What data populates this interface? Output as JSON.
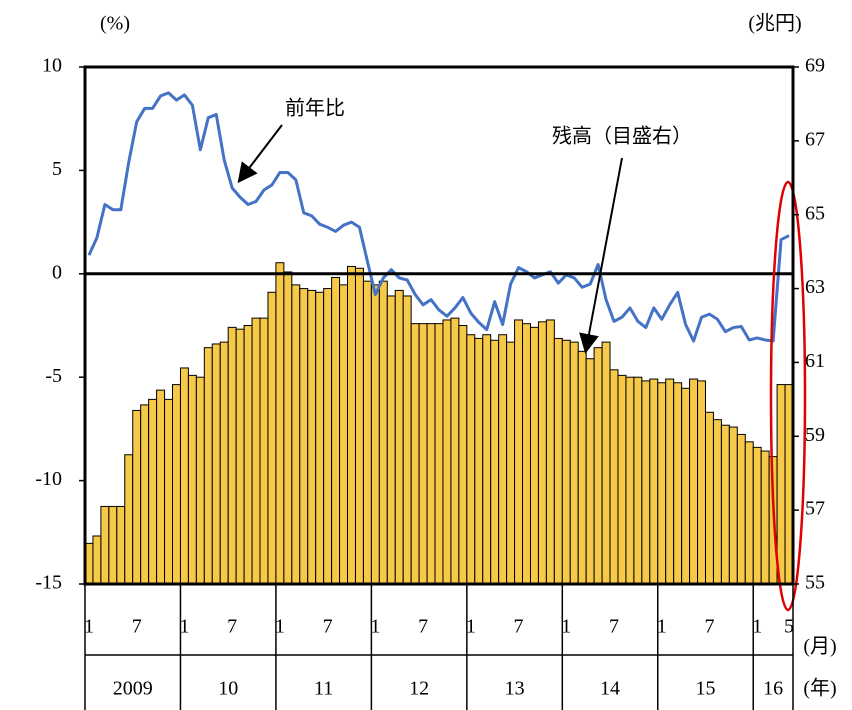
{
  "chart_data": {
    "type": "bar-line",
    "ylabel": "(%)",
    "y2label": "(兆円)",
    "xlabel": "(月)",
    "x2label": "(年)",
    "ylim": [
      -15,
      10
    ],
    "yticks": [
      -15,
      -10,
      -5,
      0,
      5,
      10
    ],
    "y2lim": [
      55,
      69
    ],
    "y2ticks": [
      55,
      57,
      59,
      61,
      63,
      65,
      67,
      69
    ],
    "categories": [
      "1",
      null,
      null,
      null,
      null,
      null,
      "7",
      null,
      null,
      null,
      null,
      null,
      "1",
      null,
      null,
      null,
      null,
      null,
      "7",
      null,
      null,
      null,
      null,
      null,
      "1",
      null,
      null,
      null,
      null,
      null,
      "7",
      null,
      null,
      null,
      null,
      null,
      "1",
      null,
      null,
      null,
      null,
      null,
      "7",
      null,
      null,
      null,
      null,
      null,
      "1",
      null,
      null,
      null,
      null,
      null,
      "7",
      null,
      null,
      null,
      null,
      null,
      "1",
      null,
      null,
      null,
      null,
      null,
      "7",
      null,
      null,
      null,
      null,
      null,
      "1",
      null,
      null,
      null,
      null,
      null,
      "7",
      null,
      null,
      null,
      null,
      null,
      "1",
      null,
      null,
      null,
      "5"
    ],
    "years": [
      "2009",
      "10",
      "11",
      "12",
      "13",
      "14",
      "15",
      "16"
    ],
    "series": [
      {
        "name": "残高（目盛右）",
        "type": "bar",
        "axis": "y2",
        "color": "#f7c948",
        "values": [
          56.1,
          56.3,
          57.1,
          57.1,
          57.1,
          58.5,
          59.7,
          59.85,
          60.0,
          60.25,
          60.0,
          60.4,
          60.85,
          60.65,
          60.6,
          61.4,
          61.5,
          61.55,
          61.95,
          61.9,
          62.0,
          62.2,
          62.2,
          62.9,
          63.7,
          63.45,
          63.1,
          63.0,
          62.95,
          62.9,
          63.0,
          63.3,
          63.1,
          63.6,
          63.55,
          63.2,
          63.1,
          63.2,
          62.8,
          62.95,
          62.8,
          62.05,
          62.05,
          62.05,
          62.05,
          62.15,
          62.2,
          62.0,
          61.75,
          61.65,
          61.75,
          61.6,
          61.75,
          61.55,
          62.15,
          62.05,
          61.95,
          62.1,
          62.15,
          61.65,
          61.6,
          61.55,
          61.3,
          61.1,
          61.4,
          61.55,
          60.8,
          60.65,
          60.6,
          60.6,
          60.5,
          60.55,
          60.45,
          60.55,
          60.45,
          60.3,
          60.55,
          60.5,
          59.65,
          59.45,
          59.3,
          59.25,
          59.05,
          58.85,
          58.7,
          58.6,
          58.45,
          60.4,
          60.4
        ]
      },
      {
        "name": "前年比",
        "type": "line",
        "axis": "y",
        "color": "#4472c4",
        "values": [
          0.9,
          1.75,
          3.35,
          3.1,
          3.1,
          5.4,
          7.35,
          8.0,
          8.0,
          8.6,
          8.75,
          8.4,
          8.65,
          8.15,
          6.0,
          7.55,
          7.7,
          5.5,
          4.15,
          3.7,
          3.35,
          3.5,
          4.05,
          4.3,
          4.9,
          4.9,
          4.55,
          2.95,
          2.8,
          2.4,
          2.25,
          2.05,
          2.35,
          2.5,
          2.25,
          0.6,
          -1.0,
          -0.2,
          0.2,
          -0.2,
          -0.3,
          -1.0,
          -1.5,
          -1.25,
          -1.75,
          -2.05,
          -1.65,
          -1.15,
          -1.9,
          -2.35,
          -2.7,
          -1.35,
          -2.45,
          -0.5,
          0.3,
          0.1,
          -0.2,
          -0.05,
          0.1,
          -0.45,
          -0.05,
          -0.2,
          -0.65,
          -0.5,
          0.45,
          -1.25,
          -2.3,
          -2.1,
          -1.65,
          -2.3,
          -2.6,
          -1.65,
          -2.2,
          -1.5,
          -0.9,
          -2.45,
          -3.25,
          -2.1,
          -1.95,
          -2.2,
          -2.8,
          -2.6,
          -2.55,
          -3.2,
          -3.1,
          -3.2,
          -3.25,
          1.65,
          1.85
        ]
      }
    ]
  }
}
